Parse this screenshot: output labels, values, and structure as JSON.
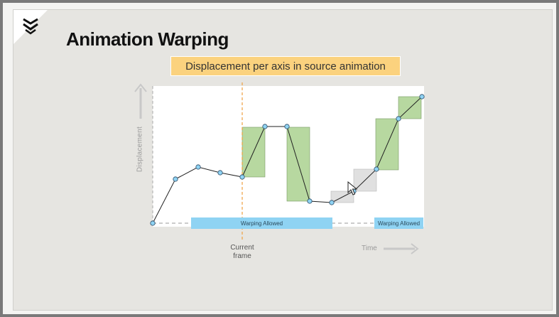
{
  "slide": {
    "title": "Animation Warping"
  },
  "diagram": {
    "chart_title": "Displacement per axis in source animation",
    "ylabel": "Displacement",
    "xlabel": "Time",
    "current_frame_label": "Current\nframe",
    "bands": [
      {
        "label": "Warping Allowed"
      },
      {
        "label": "Warping Allowed"
      }
    ]
  },
  "colors": {
    "accent_box": "#fbd27e",
    "band": "#8fd3f3",
    "delta_green": "#b7d8a0",
    "delta_grey": "#e0e0e0",
    "current_frame_line": "#f0a040",
    "point_fill": "#8fd3f3"
  },
  "icons": {
    "logo": "chevron-shield-icon",
    "cursor": "mouse-pointer-icon",
    "y_arrow": "arrow-up-icon",
    "x_arrow": "arrow-right-icon"
  }
}
